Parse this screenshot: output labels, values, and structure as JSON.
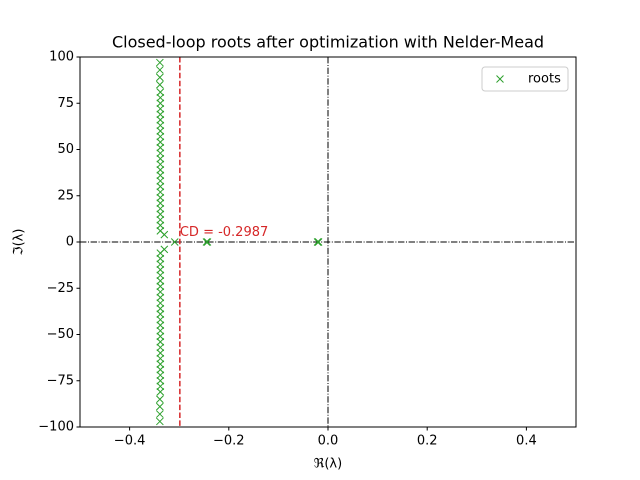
{
  "chart_data": {
    "type": "scatter",
    "title": "Closed-loop roots after optimization with Nelder-Mead",
    "x_label": "ℜ(λ)",
    "y_label": "ℑ(λ)",
    "xlim": [
      -0.5,
      0.5
    ],
    "ylim": [
      -100,
      100
    ],
    "xticks": [
      {
        "value": -0.4,
        "label": "−0.4"
      },
      {
        "value": -0.2,
        "label": "−0.2"
      },
      {
        "value": 0,
        "label": "0.0"
      },
      0.2,
      0.4
    ],
    "yticks": [
      {
        "value": -100,
        "label": "−100"
      },
      {
        "value": -75,
        "label": "−75"
      },
      {
        "value": -50,
        "label": "−50"
      },
      {
        "value": -25,
        "label": "−25"
      },
      0,
      25,
      50,
      75,
      100
    ],
    "legend": "upper right",
    "series": [
      {
        "name": "roots",
        "color": "#2ca02c",
        "marker": "x",
        "x": [
          -0.338,
          -0.338,
          -0.338,
          -0.338,
          -0.338,
          -0.338,
          -0.338,
          -0.338,
          -0.338,
          -0.338,
          -0.338,
          -0.338,
          -0.338,
          -0.338,
          -0.338,
          -0.338,
          -0.338,
          -0.338,
          -0.338,
          -0.338,
          -0.338,
          -0.338,
          -0.338,
          -0.338,
          -0.338,
          -0.338,
          -0.339,
          -0.339,
          -0.339,
          -0.339,
          -0.338,
          -0.338,
          -0.338,
          -0.338,
          -0.338,
          -0.338,
          -0.338,
          -0.338,
          -0.338,
          -0.338,
          -0.338,
          -0.338,
          -0.338,
          -0.338,
          -0.338,
          -0.338,
          -0.338,
          -0.338,
          -0.338,
          -0.338,
          -0.338,
          -0.338,
          -0.338,
          -0.338,
          -0.338,
          -0.338,
          -0.339,
          -0.339,
          -0.339,
          -0.339,
          -0.33,
          -0.33,
          -0.309,
          -0.245,
          -0.243,
          -0.02,
          -0.021,
          -0.019
        ],
        "values": [
          6,
          9,
          12,
          15,
          18,
          21,
          24,
          27,
          30,
          33,
          36,
          39,
          42,
          45,
          48,
          51,
          54,
          57,
          60,
          63,
          66,
          69,
          72,
          75,
          78,
          81,
          85,
          89,
          93,
          97,
          -6,
          -9,
          -12,
          -15,
          -18,
          -21,
          -24,
          -27,
          -30,
          -33,
          -36,
          -39,
          -42,
          -45,
          -48,
          -51,
          -54,
          -57,
          -60,
          -63,
          -66,
          -69,
          -72,
          -75,
          -78,
          -81,
          -85,
          -89,
          -93,
          -97,
          4,
          -4,
          0,
          0,
          0,
          0,
          0,
          0
        ]
      }
    ],
    "reference_lines": [
      {
        "axis": "x",
        "value": 0,
        "color": "#000000",
        "style": "dashdot"
      },
      {
        "axis": "y",
        "value": 0,
        "color": "#000000",
        "style": "dashdot"
      },
      {
        "axis": "x",
        "value": -0.2987,
        "color": "#d62728",
        "style": "dashed"
      }
    ],
    "annotations": [
      {
        "text": "CD = -0.2987",
        "x": -0.2987,
        "y": 2,
        "color": "#d62728"
      }
    ]
  }
}
